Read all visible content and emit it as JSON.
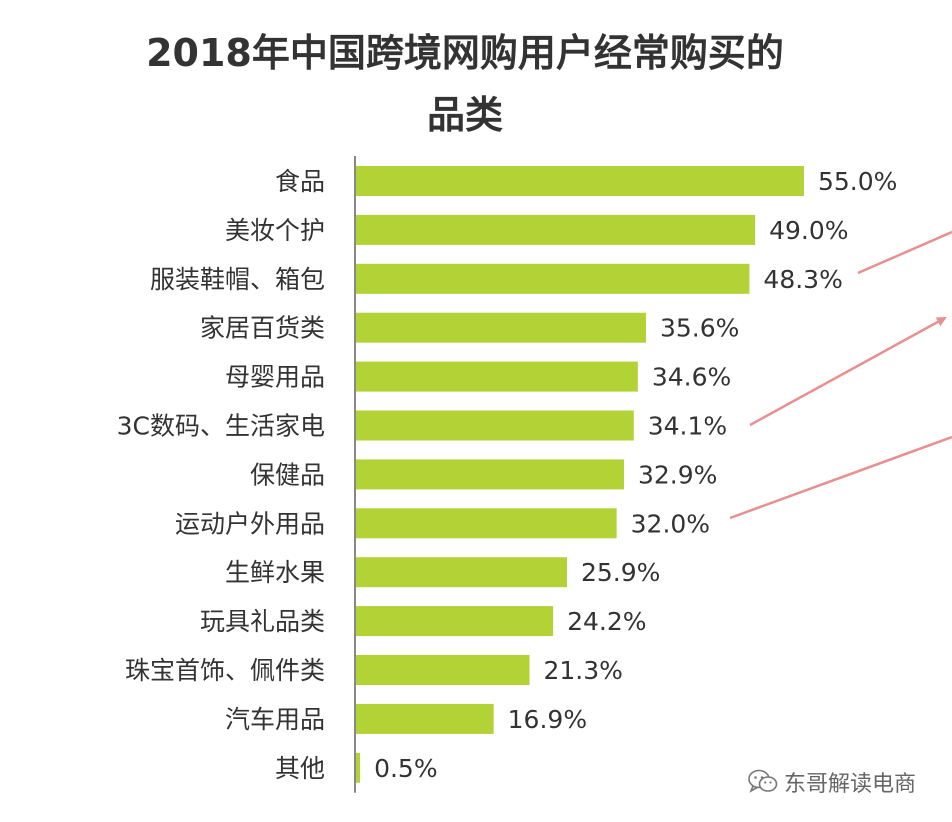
{
  "chart_data": {
    "type": "bar",
    "orientation": "horizontal",
    "title_lines": [
      "2018年中国跨境网购用户经常购买的",
      "品类"
    ],
    "categories": [
      "食品",
      "美妆个护",
      "服装鞋帽、箱包",
      "家居百货类",
      "母婴用品",
      "3C数码、生活家电",
      "保健品",
      "运动户外用品",
      "生鲜水果",
      "玩具礼品类",
      "珠宝首饰、佩件类",
      "汽车用品",
      "其他"
    ],
    "values": [
      55.0,
      49.0,
      48.3,
      35.6,
      34.6,
      34.1,
      32.9,
      32.0,
      25.9,
      24.2,
      21.3,
      16.9,
      0.5
    ],
    "value_labels": [
      "55.0%",
      "49.0%",
      "48.3%",
      "35.6%",
      "34.6%",
      "34.1%",
      "32.9%",
      "32.0%",
      "25.9%",
      "24.2%",
      "21.3%",
      "16.9%",
      "0.5%"
    ],
    "unit": "%",
    "xlim": [
      0,
      55
    ],
    "grid": false,
    "legend": "none",
    "bar_color": "#b2d235",
    "annotation_arrow_color": "#e88f91"
  },
  "watermark": {
    "text": "东哥解读电商",
    "icon": "wechat-icon"
  }
}
